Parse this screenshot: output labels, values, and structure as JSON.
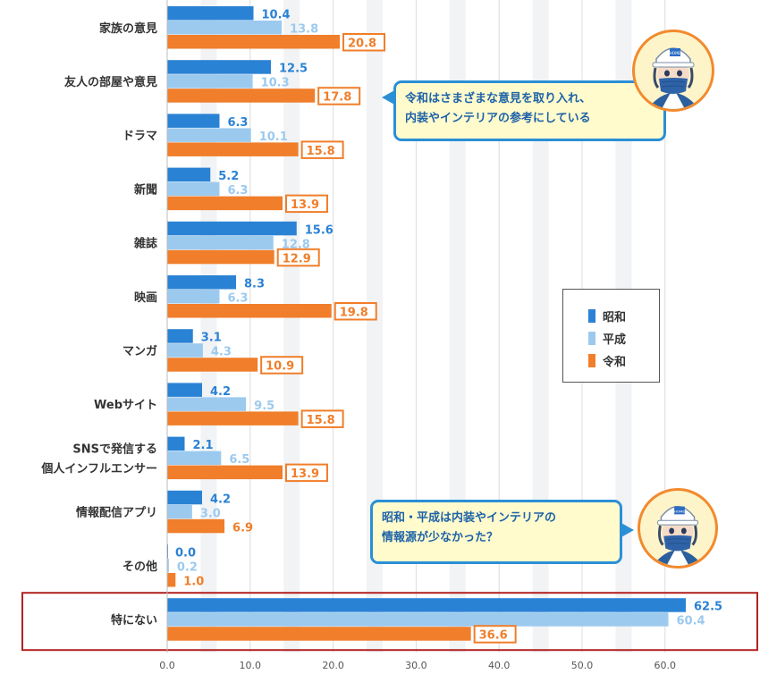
{
  "chart_data": {
    "type": "bar",
    "orientation": "horizontal",
    "categories": [
      [
        "家族の意見"
      ],
      [
        "友人の部屋や意見"
      ],
      [
        "ドラマ"
      ],
      [
        "新聞"
      ],
      [
        "雑誌"
      ],
      [
        "映画"
      ],
      [
        "マンガ"
      ],
      [
        "Webサイト"
      ],
      [
        "SNSで発信する",
        "個人インフルエンサー"
      ],
      [
        "情報配信アプリ"
      ],
      [
        "その他"
      ],
      [
        "特にない"
      ]
    ],
    "series": [
      {
        "name": "昭和",
        "color": "#2a82d4",
        "values": [
          10.4,
          12.5,
          6.3,
          5.2,
          15.6,
          8.3,
          3.1,
          4.2,
          2.1,
          4.2,
          0.0,
          62.5
        ]
      },
      {
        "name": "平成",
        "color": "#9ccaef",
        "values": [
          13.8,
          10.3,
          10.1,
          6.3,
          12.8,
          6.3,
          4.3,
          9.5,
          6.5,
          3.0,
          0.2,
          60.4
        ]
      },
      {
        "name": "令和",
        "color": "#f07e2a",
        "values": [
          20.8,
          17.8,
          15.8,
          13.9,
          12.9,
          19.8,
          10.9,
          15.8,
          13.9,
          6.9,
          1.0,
          36.6
        ]
      }
    ],
    "value_labels": [
      [
        "10.4",
        "12.5",
        "6.3",
        "5.2",
        "15.6",
        "8.3",
        "3.1",
        "4.2",
        "2.1",
        "4.2",
        "0.0",
        "62.5"
      ],
      [
        "13.8",
        "10.3",
        "10.1",
        "6.3",
        "12.8",
        "6.3",
        "4.3",
        "9.5",
        "6.5",
        "3.0",
        "0.2",
        "60.4"
      ],
      [
        "20.8",
        "17.8",
        "15.8",
        "13.9",
        "12.9",
        "19.8",
        "10.9",
        "15.8",
        "13.9",
        "6.9",
        "1.0",
        "36.6"
      ]
    ],
    "boxed_series": "令和",
    "boxed_threshold": 10,
    "x_ticks": [
      0,
      10,
      20,
      30,
      40,
      50,
      60
    ],
    "x_tick_labels": [
      "0.0",
      "10.0",
      "20.0",
      "30.0",
      "40.0",
      "50.0",
      "60.0"
    ],
    "xlim": [
      0,
      70
    ],
    "grid": true,
    "highlight_category": "特にない",
    "highlight_color": "#b22222",
    "title": "",
    "xlabel": "",
    "ylabel": ""
  },
  "legend": {
    "items": [
      {
        "label": "昭和",
        "color": "#2a82d4"
      },
      {
        "label": "平成",
        "color": "#9ccaef"
      },
      {
        "label": "令和",
        "color": "#f07e2a"
      }
    ]
  },
  "callouts": {
    "reiwa": {
      "lines": [
        "令和はさまざまな意見を取り入れ、",
        "内装やインテリアの参考にしている"
      ]
    },
    "showa_heisei": {
      "lines": [
        "昭和・平成は内装やインテリアの",
        "情報源が少なかった？"
      ]
    }
  },
  "mascot": {
    "cap_badge": "HOME"
  }
}
